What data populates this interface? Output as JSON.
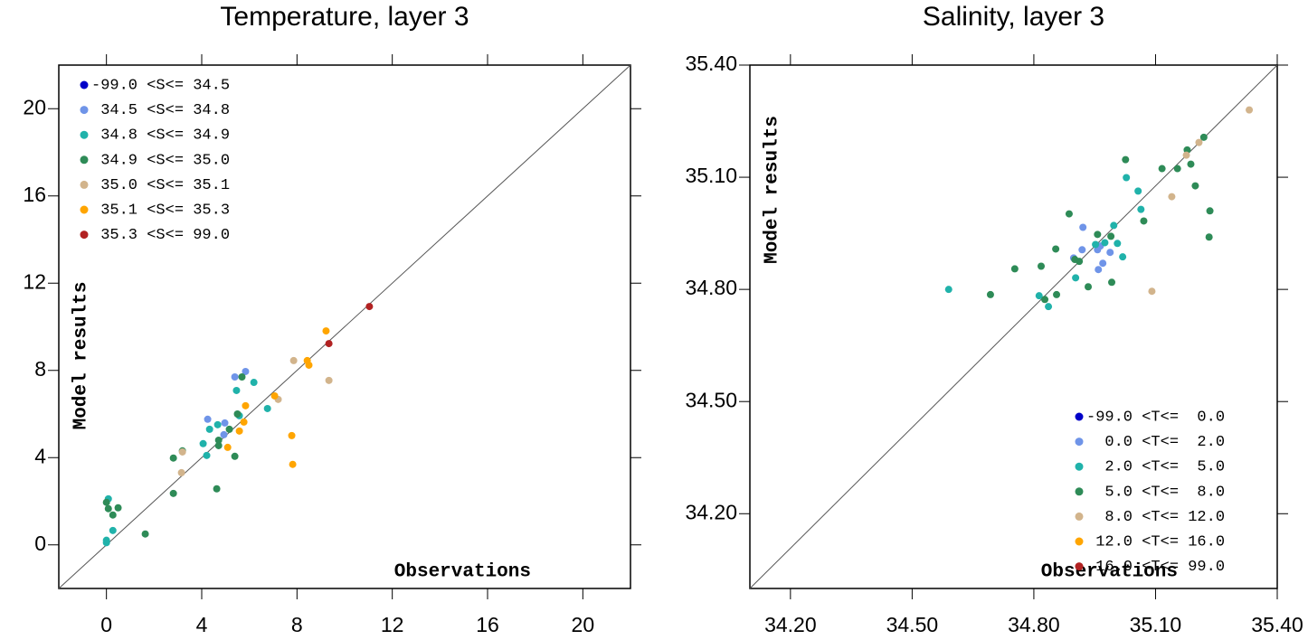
{
  "chart_data": [
    {
      "type": "scatter",
      "title": "Temperature, layer 3",
      "xlabel": "Observations",
      "ylabel": "Model results",
      "xlim": [
        -2,
        22
      ],
      "ylim": [
        -2,
        22
      ],
      "xticks": [
        0,
        4,
        8,
        12,
        16,
        20
      ],
      "yticks": [
        0,
        4,
        8,
        12,
        16,
        20
      ],
      "legend": "upper left",
      "series": [
        {
          "name": "-99.0 <S<= 34.5",
          "color": "#0000c8",
          "x": [],
          "values": []
        },
        {
          "name": " 34.5 <S<= 34.8",
          "color": "#6f94e8",
          "x": [
            5.39,
            5.84,
            4.25,
            4.97,
            4.93
          ],
          "values": [
            7.7,
            7.95,
            5.76,
            5.59,
            5.05
          ]
        },
        {
          "name": " 34.8 <S<= 34.9",
          "color": "#20b2aa",
          "x": [
            0.08,
            0,
            0.27,
            0,
            5.46,
            6.19,
            6.76,
            4.67,
            4.33,
            4.06,
            4.21,
            5.58
          ],
          "values": [
            2.11,
            0.21,
            0.66,
            0.1,
            7.08,
            7.45,
            6.25,
            5.51,
            5.3,
            4.64,
            4.1,
            5.92
          ]
        },
        {
          "name": " 34.9 <S<= 35.0",
          "color": "#2e8b57",
          "x": [
            0,
            0.08,
            0.27,
            0.49,
            1.63,
            2.81,
            2.81,
            3.19,
            4.63,
            4.71,
            4.71,
            5.16,
            5.39,
            5.5,
            5.69
          ],
          "values": [
            1.95,
            1.66,
            1.37,
            1.7,
            0.5,
            3.98,
            2.36,
            4.31,
            2.57,
            4.8,
            4.55,
            5.3,
            4.06,
            6.0,
            7.7
          ]
        },
        {
          "name": " 35.0 <S<= 35.1",
          "color": "#d2b48c",
          "x": [
            3.15,
            3.19,
            7.21,
            7.86,
            9.34
          ],
          "values": [
            3.31,
            4.26,
            6.67,
            8.45,
            7.54
          ]
        },
        {
          "name": " 35.1 <S<= 35.3",
          "color": "#ffa500",
          "x": [
            5.09,
            5.58,
            5.77,
            5.84,
            7.06,
            7.78,
            7.82,
            8.43,
            8.5,
            9.22
          ],
          "values": [
            4.47,
            5.22,
            5.63,
            6.38,
            6.83,
            5.01,
            3.69,
            8.45,
            8.24,
            9.81
          ]
        },
        {
          "name": " 35.3 <S<= 99.0",
          "color": "#b22222",
          "x": [
            9.34,
            11.04
          ],
          "values": [
            9.23,
            10.93
          ]
        }
      ]
    },
    {
      "type": "scatter",
      "title": "Salinity, layer 3",
      "xlabel": "Observations",
      "ylabel": "Model results",
      "xlim": [
        34.1,
        35.4
      ],
      "ylim": [
        34.0,
        35.4
      ],
      "xticks": [
        {
          "value": 34.2,
          "label": "34.20"
        },
        {
          "value": 34.5,
          "label": "34.50"
        },
        {
          "value": 34.8,
          "label": "34.80"
        },
        {
          "value": 35.1,
          "label": "35.10"
        },
        {
          "value": 35.4,
          "label": "35.40"
        }
      ],
      "yticks": [
        {
          "value": 34.2,
          "label": "34.20"
        },
        {
          "value": 34.5,
          "label": "34.50"
        },
        {
          "value": 34.8,
          "label": "34.80"
        },
        {
          "value": 35.1,
          "label": "35.10"
        },
        {
          "value": 35.4,
          "label": "35.40"
        }
      ],
      "legend": "lower right",
      "series": [
        {
          "name": "-99.0 <T<=  0.0",
          "color": "#0000c8",
          "x": [],
          "values": []
        },
        {
          "name": "  0.0 <T<=  2.0",
          "color": "#6f94e8",
          "x": [
            34.921,
            34.898,
            34.919,
            34.957,
            34.964,
            34.97,
            34.959,
            34.988
          ],
          "values": [
            34.966,
            34.884,
            34.906,
            34.906,
            34.916,
            34.87,
            34.853,
            34.899
          ]
        },
        {
          "name": "  2.0 <T<=  5.0",
          "color": "#20b2aa",
          "x": [
            34.59,
            34.813,
            34.836,
            34.903,
            34.952,
            34.975,
            35.006,
            35.019,
            34.997,
            35.028,
            35.057,
            35.064
          ],
          "values": [
            34.8,
            34.783,
            34.754,
            34.831,
            34.92,
            34.925,
            34.923,
            34.887,
            34.971,
            35.099,
            35.063,
            35.014
          ]
        },
        {
          "name": "  5.0 <T<=  8.0",
          "color": "#2e8b57",
          "x": [
            34.753,
            34.818,
            34.854,
            34.887,
            34.901,
            34.912,
            34.827,
            34.856,
            34.934,
            34.99,
            34.957,
            34.992,
            35.026,
            35.071,
            34.693,
            35.116,
            35.154,
            35.178,
            35.187,
            35.198,
            35.219,
            35.234,
            35.232
          ],
          "values": [
            34.855,
            34.862,
            34.908,
            35.002,
            34.88,
            34.875,
            34.773,
            34.786,
            34.807,
            34.942,
            34.947,
            34.819,
            35.147,
            34.983,
            34.786,
            35.123,
            35.123,
            35.173,
            35.135,
            35.077,
            35.207,
            35.01,
            34.94
          ]
        },
        {
          "name": "  8.0 <T<= 12.0",
          "color": "#d2b48c",
          "x": [
            35.091,
            35.14,
            35.176,
            35.207,
            35.331
          ],
          "values": [
            34.795,
            35.048,
            35.159,
            35.193,
            35.28
          ]
        },
        {
          "name": " 12.0 <T<= 16.0",
          "color": "#ffa500",
          "x": [],
          "values": []
        },
        {
          "name": " 16.0 <T<= 99.0",
          "color": "#b22222",
          "x": [],
          "values": []
        }
      ]
    }
  ]
}
